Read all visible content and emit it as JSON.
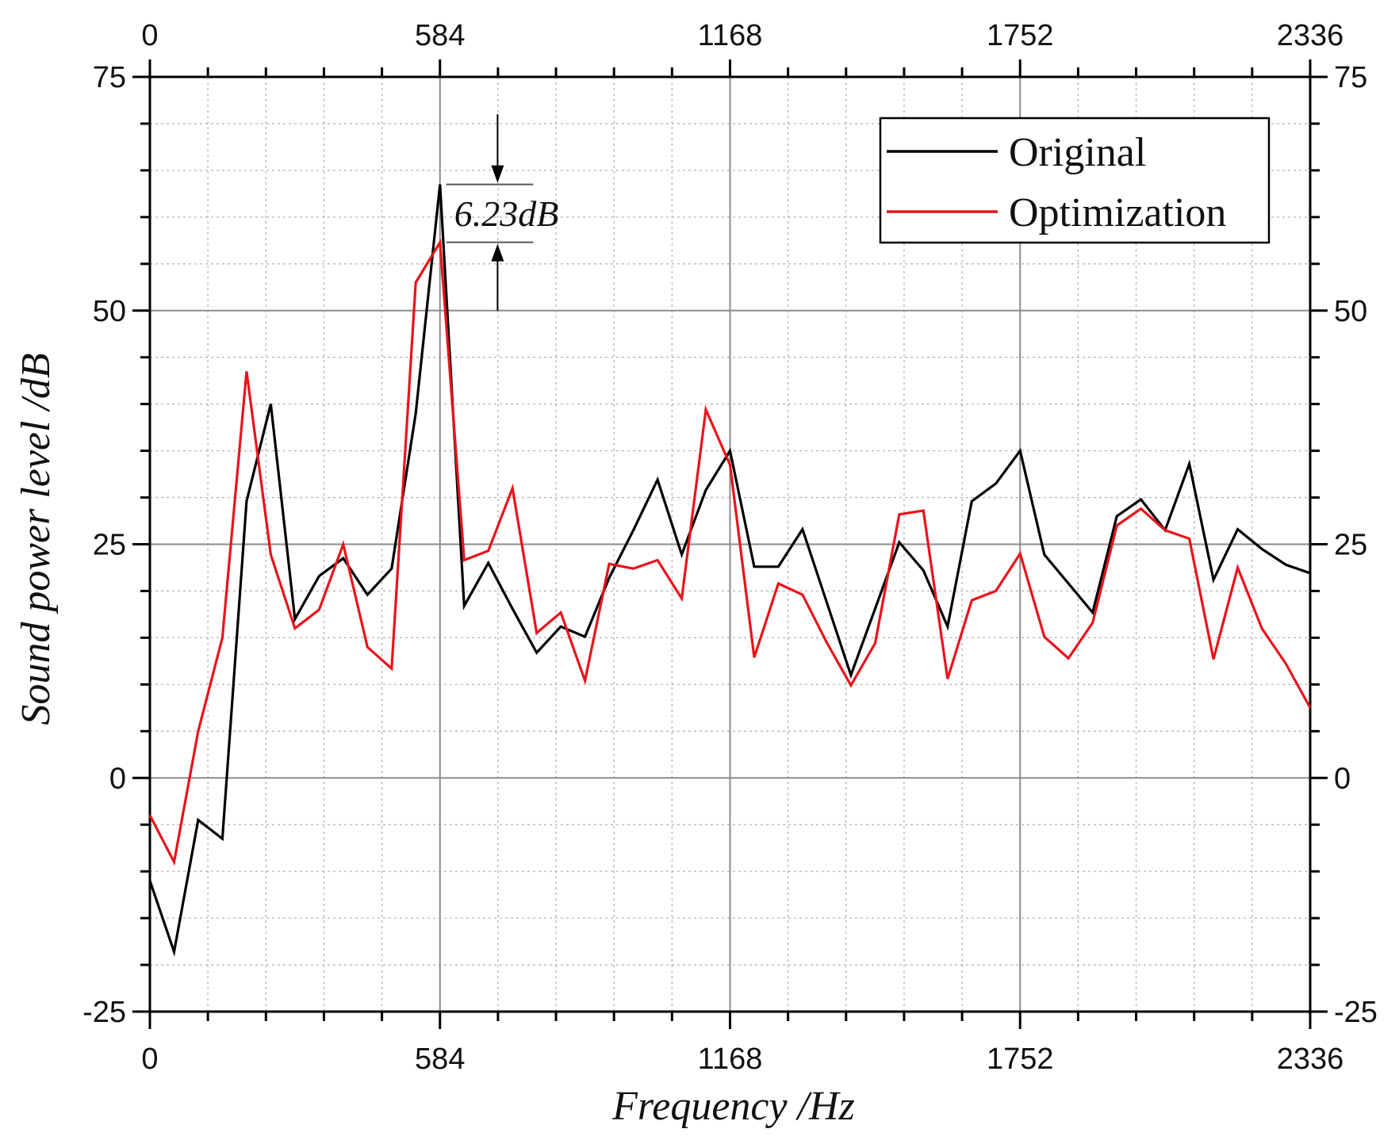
{
  "chart_data": {
    "type": "line",
    "xlabel": "Frequency /Hz",
    "ylabel": "Sound power level /dB",
    "xlim": [
      0,
      2336
    ],
    "ylim": [
      -25,
      75
    ],
    "x_ticks": [
      0,
      584,
      1168,
      1752,
      2336
    ],
    "x_tick_labels": [
      "0",
      "584",
      "1168",
      "1752",
      "2336"
    ],
    "y_ticks": [
      -25,
      0,
      25,
      50,
      75
    ],
    "y_tick_labels": [
      "-25",
      "0",
      "25",
      "50",
      "75"
    ],
    "grid": true,
    "legend_position": "top-right",
    "series": [
      {
        "name": "Original",
        "color": "#000000",
        "x": [
          0,
          48.7,
          97.3,
          146,
          194.7,
          243.3,
          292,
          340.7,
          389.3,
          438,
          486.7,
          535.3,
          584,
          632.7,
          681.3,
          730,
          778.7,
          827.3,
          876,
          924.7,
          973.3,
          1022,
          1070.7,
          1119.3,
          1168,
          1216.7,
          1265.3,
          1314,
          1362.7,
          1411.3,
          1460,
          1508.7,
          1557.3,
          1606,
          1654.7,
          1703.3,
          1752,
          1800.7,
          1849.3,
          1898,
          1946.7,
          1995.3,
          2044,
          2092.7,
          2141.3,
          2190,
          2238.7,
          2287.3,
          2336
        ],
        "y": [
          -11,
          -18.6,
          -4.5,
          -6.5,
          29.6,
          40,
          17,
          21.6,
          23.5,
          19.6,
          22.4,
          39,
          63.5,
          18.4,
          23,
          18.1,
          13.4,
          16.2,
          15.1,
          21.4,
          26.5,
          31.9,
          23.9,
          30.8,
          35,
          22.6,
          22.6,
          26.6,
          18.8,
          11,
          18.1,
          25.2,
          22.2,
          16.2,
          29.6,
          31.5,
          35,
          23.9,
          20.8,
          17.7,
          28,
          29.8,
          26.5,
          33.6,
          21.2,
          26.6,
          24.5,
          22.8,
          21.9
        ]
      },
      {
        "name": "Optimization",
        "color": "#e8141b",
        "x": [
          0,
          48.7,
          97.3,
          146,
          194.7,
          243.3,
          292,
          340.7,
          389.3,
          438,
          486.7,
          535.3,
          584,
          632.7,
          681.3,
          730,
          778.7,
          827.3,
          876,
          924.7,
          973.3,
          1022,
          1070.7,
          1119.3,
          1168,
          1216.7,
          1265.3,
          1314,
          1362.7,
          1411.3,
          1460,
          1508.7,
          1557.3,
          1606,
          1654.7,
          1703.3,
          1752,
          1800.7,
          1849.3,
          1898,
          1946.7,
          1995.3,
          2044,
          2092.7,
          2141.3,
          2190,
          2238.7,
          2287.3,
          2336
        ],
        "y": [
          -4,
          -9,
          5,
          15,
          43.5,
          23.9,
          16,
          18,
          25,
          14,
          11.7,
          53,
          57.3,
          23.3,
          24.3,
          31,
          15.5,
          17.7,
          10.4,
          22.9,
          22.4,
          23.3,
          19.2,
          39.4,
          33.5,
          12.9,
          20.8,
          19.6,
          14.5,
          9.9,
          14.4,
          28.2,
          28.6,
          10.6,
          19,
          20,
          24,
          15.1,
          12.8,
          16.6,
          27,
          28.8,
          26.5,
          25.6,
          12.7,
          22.5,
          16,
          12.2,
          7.5
        ]
      }
    ],
    "annotations": [
      {
        "text": "6.23dB",
        "x": 700,
        "y_top": 63.5,
        "y_bottom": 57.3,
        "arrow_from_top": 71,
        "arrow_from_bottom": 50
      }
    ]
  }
}
